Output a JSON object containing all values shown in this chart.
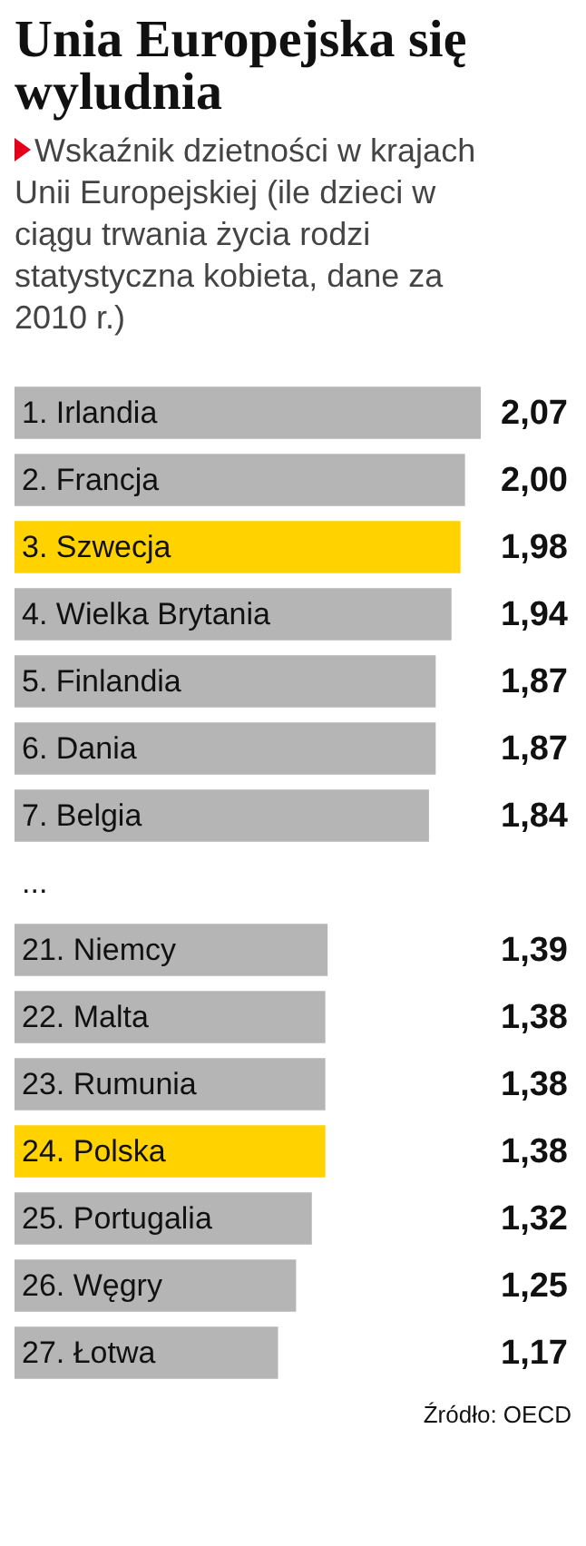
{
  "chart_data": {
    "type": "bar",
    "orientation": "horizontal",
    "title": "Unia Europejska się wyludnia",
    "subtitle": "Wskaźnik dzietności w krajach Unii Europejskiej (ile dzieci w ciągu trwania życia rodzi statystyczna kobieta, dane za 2010 r.)",
    "categories": [
      "1. Irlandia",
      "2. Francja",
      "3. Szwecja",
      "4. Wielka Brytania",
      "5. Finlandia",
      "6. Dania",
      "7. Belgia",
      "...",
      "21. Niemcy",
      "22. Malta",
      "23. Rumunia",
      "24. Polska",
      "25. Portugalia",
      "26. Węgry",
      "27. Łotwa"
    ],
    "values": [
      2.07,
      2.0,
      1.98,
      1.94,
      1.87,
      1.87,
      1.84,
      null,
      1.39,
      1.38,
      1.38,
      1.38,
      1.32,
      1.25,
      1.17
    ],
    "value_labels": [
      "2,07",
      "2,00",
      "1,98",
      "1,94",
      "1,87",
      "1,87",
      "1,84",
      null,
      "1,39",
      "1,38",
      "1,38",
      "1,38",
      "1,32",
      "1,25",
      "1,17"
    ],
    "colors": [
      "#b5b5b5",
      "#b5b5b5",
      "#ffd200",
      "#b5b5b5",
      "#b5b5b5",
      "#b5b5b5",
      "#b5b5b5",
      "#b5b5b5",
      "#b5b5b5",
      "#b5b5b5",
      "#b5b5b5",
      "#ffd200",
      "#b5b5b5",
      "#b5b5b5",
      "#b5b5b5"
    ],
    "annotations": [
      "Źródło: OECD"
    ],
    "legend": false
  }
}
